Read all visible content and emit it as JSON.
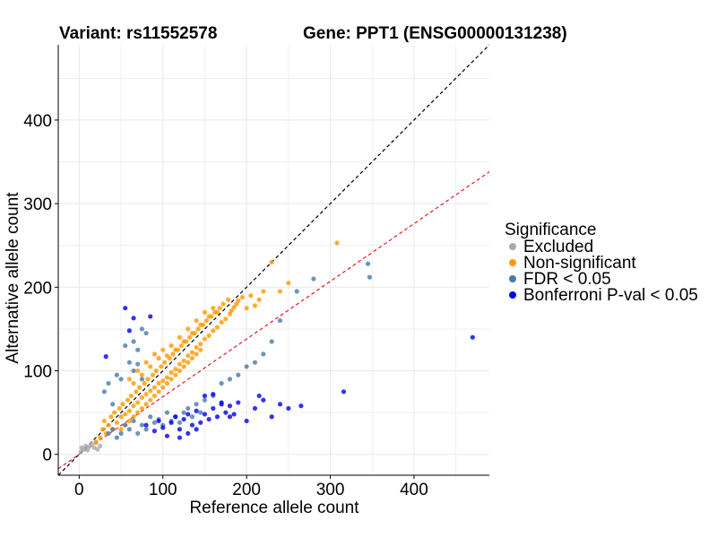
{
  "chart_data": {
    "type": "scatter",
    "title_variant": "Variant: rs11552578",
    "title_gene": "Gene: PPT1 (ENSG00000131238)",
    "xlabel": "Reference allele count",
    "ylabel": "Alternative allele count",
    "xlim": [
      -25,
      490
    ],
    "ylim": [
      -25,
      490
    ],
    "xticks": [
      0,
      100,
      200,
      300,
      400
    ],
    "yticks": [
      0,
      100,
      200,
      300,
      400
    ],
    "tick_labels_x": [
      "0",
      "100",
      "200",
      "300",
      "400"
    ],
    "tick_labels_y": [
      "0",
      "100",
      "200",
      "300",
      "400"
    ],
    "grid": true,
    "reference_lines": [
      {
        "name": "identity",
        "slope": 1.0,
        "intercept": 0,
        "color": "#000000",
        "style": "dashed"
      },
      {
        "name": "expected-ratio",
        "slope": 0.69,
        "intercept": 0,
        "color": "#e41a1c",
        "style": "dashed"
      }
    ],
    "legend": {
      "title": "Significance",
      "position": "right",
      "entries": [
        {
          "label": "Excluded",
          "color": "#aaaaaa"
        },
        {
          "label": "Non-significant",
          "color": "#ff9900"
        },
        {
          "label": "FDR < 0.05",
          "color": "#4a7aa8"
        },
        {
          "label": "Bonferroni P-val < 0.05",
          "color": "#0000ee"
        }
      ]
    },
    "series": [
      {
        "name": "Excluded",
        "color": "#aaaaaa",
        "points": [
          [
            2,
            3
          ],
          [
            3,
            8
          ],
          [
            5,
            6
          ],
          [
            8,
            10
          ],
          [
            10,
            5
          ],
          [
            12,
            9
          ],
          [
            15,
            12
          ],
          [
            18,
            8
          ],
          [
            20,
            14
          ],
          [
            22,
            6
          ],
          [
            25,
            10
          ]
        ]
      },
      {
        "name": "Non-significant",
        "color": "#ff9900",
        "points": [
          [
            20,
            15
          ],
          [
            25,
            20
          ],
          [
            28,
            30
          ],
          [
            30,
            40
          ],
          [
            32,
            25
          ],
          [
            35,
            35
          ],
          [
            38,
            45
          ],
          [
            40,
            30
          ],
          [
            42,
            50
          ],
          [
            45,
            38
          ],
          [
            48,
            55
          ],
          [
            50,
            45
          ],
          [
            52,
            60
          ],
          [
            55,
            48
          ],
          [
            58,
            65
          ],
          [
            60,
            52
          ],
          [
            62,
            70
          ],
          [
            65,
            58
          ],
          [
            68,
            75
          ],
          [
            70,
            62
          ],
          [
            72,
            80
          ],
          [
            75,
            68
          ],
          [
            78,
            85
          ],
          [
            80,
            72
          ],
          [
            82,
            90
          ],
          [
            85,
            76
          ],
          [
            88,
            95
          ],
          [
            90,
            80
          ],
          [
            92,
            100
          ],
          [
            95,
            85
          ],
          [
            98,
            105
          ],
          [
            100,
            88
          ],
          [
            102,
            110
          ],
          [
            105,
            92
          ],
          [
            108,
            115
          ],
          [
            110,
            98
          ],
          [
            112,
            120
          ],
          [
            115,
            102
          ],
          [
            118,
            125
          ],
          [
            120,
            108
          ],
          [
            122,
            130
          ],
          [
            125,
            112
          ],
          [
            128,
            135
          ],
          [
            130,
            118
          ],
          [
            132,
            140
          ],
          [
            135,
            122
          ],
          [
            138,
            145
          ],
          [
            140,
            128
          ],
          [
            142,
            150
          ],
          [
            145,
            132
          ],
          [
            148,
            155
          ],
          [
            150,
            138
          ],
          [
            152,
            160
          ],
          [
            155,
            142
          ],
          [
            158,
            165
          ],
          [
            160,
            148
          ],
          [
            162,
            170
          ],
          [
            165,
            152
          ],
          [
            168,
            175
          ],
          [
            170,
            158
          ],
          [
            172,
            180
          ],
          [
            175,
            162
          ],
          [
            178,
            185
          ],
          [
            180,
            168
          ],
          [
            182,
            172
          ],
          [
            185,
            176
          ],
          [
            188,
            180
          ],
          [
            190,
            184
          ],
          [
            195,
            188
          ],
          [
            200,
            175
          ],
          [
            205,
            190
          ],
          [
            210,
            178
          ],
          [
            215,
            185
          ],
          [
            220,
            195
          ],
          [
            230,
            230
          ],
          [
            240,
            195
          ],
          [
            250,
            205
          ],
          [
            308,
            253
          ],
          [
            60,
            90
          ],
          [
            65,
            85
          ],
          [
            70,
            100
          ],
          [
            75,
            95
          ],
          [
            80,
            110
          ],
          [
            85,
            105
          ],
          [
            90,
            120
          ],
          [
            95,
            115
          ],
          [
            100,
            125
          ],
          [
            105,
            118
          ],
          [
            110,
            130
          ],
          [
            115,
            125
          ],
          [
            120,
            140
          ],
          [
            125,
            135
          ],
          [
            130,
            150
          ],
          [
            135,
            145
          ],
          [
            140,
            160
          ],
          [
            145,
            155
          ],
          [
            150,
            170
          ],
          [
            155,
            165
          ],
          [
            160,
            175
          ],
          [
            165,
            170
          ],
          [
            50,
            30
          ],
          [
            55,
            35
          ],
          [
            60,
            40
          ],
          [
            65,
            45
          ],
          [
            70,
            50
          ],
          [
            75,
            55
          ],
          [
            80,
            60
          ],
          [
            85,
            65
          ],
          [
            90,
            70
          ],
          [
            95,
            75
          ],
          [
            100,
            80
          ],
          [
            105,
            85
          ],
          [
            110,
            90
          ],
          [
            115,
            95
          ],
          [
            120,
            100
          ],
          [
            125,
            105
          ],
          [
            130,
            110
          ],
          [
            135,
            115
          ],
          [
            140,
            120
          ],
          [
            145,
            125
          ]
        ]
      },
      {
        "name": "FDR < 0.05",
        "color": "#4a7aa8",
        "points": [
          [
            30,
            75
          ],
          [
            35,
            85
          ],
          [
            40,
            60
          ],
          [
            45,
            95
          ],
          [
            50,
            90
          ],
          [
            55,
            130
          ],
          [
            60,
            110
          ],
          [
            65,
            135
          ],
          [
            70,
            125
          ],
          [
            75,
            90
          ],
          [
            35,
            25
          ],
          [
            40,
            30
          ],
          [
            45,
            20
          ],
          [
            50,
            25
          ],
          [
            55,
            35
          ],
          [
            60,
            30
          ],
          [
            65,
            40
          ],
          [
            70,
            25
          ],
          [
            75,
            35
          ],
          [
            80,
            30
          ],
          [
            85,
            45
          ],
          [
            90,
            38
          ],
          [
            95,
            42
          ],
          [
            100,
            35
          ],
          [
            105,
            50
          ],
          [
            110,
            40
          ],
          [
            115,
            45
          ],
          [
            120,
            38
          ],
          [
            125,
            50
          ],
          [
            130,
            55
          ],
          [
            135,
            45
          ],
          [
            140,
            60
          ],
          [
            145,
            50
          ],
          [
            150,
            65
          ],
          [
            160,
            70
          ],
          [
            170,
            85
          ],
          [
            180,
            90
          ],
          [
            190,
            95
          ],
          [
            200,
            105
          ],
          [
            210,
            110
          ],
          [
            220,
            120
          ],
          [
            230,
            135
          ],
          [
            240,
            160
          ],
          [
            260,
            195
          ],
          [
            280,
            210
          ],
          [
            345,
            228
          ],
          [
            347,
            212
          ],
          [
            75,
            150
          ],
          [
            80,
            145
          ],
          [
            65,
            100
          ],
          [
            70,
            108
          ]
        ]
      },
      {
        "name": "Bonferroni P-val < 0.05",
        "color": "#0000ee",
        "points": [
          [
            55,
            175
          ],
          [
            60,
            148
          ],
          [
            65,
            163
          ],
          [
            85,
            165
          ],
          [
            32,
            117
          ],
          [
            80,
            35
          ],
          [
            90,
            28
          ],
          [
            95,
            40
          ],
          [
            100,
            32
          ],
          [
            105,
            22
          ],
          [
            110,
            38
          ],
          [
            115,
            45
          ],
          [
            120,
            30
          ],
          [
            125,
            42
          ],
          [
            130,
            48
          ],
          [
            135,
            35
          ],
          [
            140,
            52
          ],
          [
            145,
            38
          ],
          [
            150,
            48
          ],
          [
            155,
            42
          ],
          [
            160,
            55
          ],
          [
            165,
            45
          ],
          [
            170,
            60
          ],
          [
            175,
            50
          ],
          [
            180,
            58
          ],
          [
            185,
            48
          ],
          [
            190,
            62
          ],
          [
            200,
            40
          ],
          [
            210,
            55
          ],
          [
            215,
            70
          ],
          [
            220,
            65
          ],
          [
            230,
            45
          ],
          [
            240,
            60
          ],
          [
            250,
            55
          ],
          [
            265,
            58
          ],
          [
            316,
            75
          ],
          [
            470,
            140
          ],
          [
            120,
            20
          ],
          [
            130,
            25
          ],
          [
            140,
            30
          ],
          [
            150,
            70
          ],
          [
            160,
            72
          ],
          [
            170,
            62
          ],
          [
            180,
            45
          ]
        ]
      }
    ]
  }
}
